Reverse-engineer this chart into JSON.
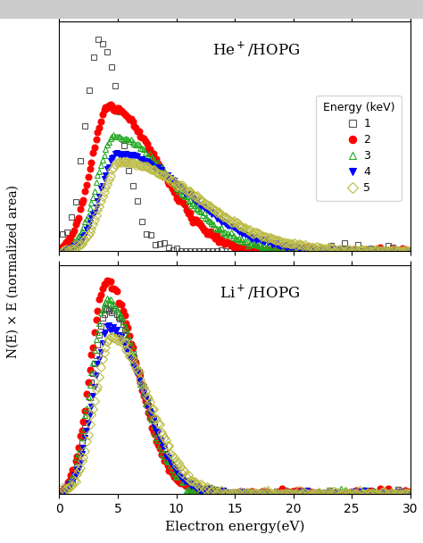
{
  "title_top": "He$^+$/HOPG",
  "title_bottom": "Li$^+$/HOPG",
  "xlabel": "Electron energy(eV)",
  "ylabel": "N(E) × E (normalized area)",
  "legend_title": "Energy (keV)",
  "legend_labels": [
    "1",
    "2",
    "3",
    "4",
    "5"
  ],
  "colors": [
    "#555555",
    "#ff0000",
    "#22aa22",
    "#0000ff",
    "#bbbb44"
  ],
  "markers": [
    "s",
    "o",
    "^",
    "v",
    "D"
  ],
  "fillstyles": [
    "none",
    "full",
    "none",
    "full",
    "none"
  ],
  "markersizes": [
    5,
    5,
    5,
    5,
    5
  ],
  "xlim": [
    0,
    30
  ],
  "xticks": [
    0,
    5,
    10,
    15,
    20,
    25,
    30
  ],
  "figsize": [
    4.74,
    6.08
  ],
  "dpi": 100,
  "header_color": "#cccccc",
  "he_params": [
    [
      3.5,
      1.0,
      1.3,
      1.8,
      11
    ],
    [
      4.2,
      0.68,
      1.5,
      4.2,
      21
    ],
    [
      4.7,
      0.54,
      1.5,
      5.0,
      31
    ],
    [
      5.0,
      0.46,
      1.5,
      5.8,
      41
    ],
    [
      5.2,
      0.42,
      1.5,
      6.5,
      51
    ]
  ],
  "li_params": [
    [
      4.2,
      0.88,
      1.4,
      2.8,
      61
    ],
    [
      4.0,
      1.0,
      1.35,
      2.6,
      71
    ],
    [
      4.1,
      0.92,
      1.38,
      2.7,
      81
    ],
    [
      4.3,
      0.78,
      1.4,
      2.9,
      91
    ],
    [
      4.5,
      0.74,
      1.45,
      3.1,
      101
    ]
  ],
  "he_npoints": [
    80,
    220,
    220,
    220,
    220
  ],
  "li_npoints": [
    220,
    220,
    220,
    220,
    220
  ]
}
